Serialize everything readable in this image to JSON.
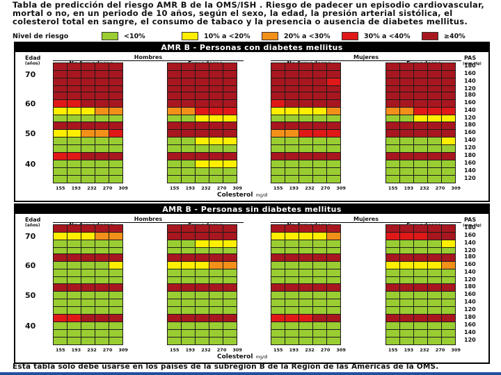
{
  "header": {
    "title_lead": "Tabla de predicción del riesgo AMR B de la OMS/ISH",
    "title_rest": ". Riesgo de padecer un episodio cardiovascular, mortal o no, en un periodo de 10 años, según el sexo, la edad, la presión arterial sistólica, el colesterol total en sangre, el consumo de tabaco y la presencia o ausencia de diabetes mellitus."
  },
  "legend": {
    "title": "Nivel de riesgo",
    "items": [
      {
        "label": "<10%",
        "color": "#9acd32"
      },
      {
        "label": "10% a <20%",
        "color": "#ffee00"
      },
      {
        "label": "20% a <30%",
        "color": "#f39019"
      },
      {
        "label": "30% a <40%",
        "color": "#e01818"
      },
      {
        "label": "≥40%",
        "color": "#a8171f"
      }
    ]
  },
  "labels": {
    "edad": "Edad",
    "anos": "(años)",
    "pas": "PAS",
    "pas_unit": "(mm Hg)",
    "hombres": "Hombres",
    "mujeres": "Mujeres",
    "no_fumadores": "No fumadores",
    "fumadores": "Fumadores",
    "colesterol": "Colesterol",
    "colesterol_unit": "mg/dl"
  },
  "ages": [
    "70",
    "60",
    "50",
    "40"
  ],
  "pas_values": [
    "180",
    "160",
    "140",
    "120"
  ],
  "cholesterol_ticks": [
    "155",
    "193",
    "232",
    "270",
    "309"
  ],
  "panels": [
    {
      "title": "AMR B - Personas con diabetes mellitus",
      "rows": [
        [
          "55555555555555555555",
          "55555555555555555555",
          "55555555555555555555",
          "55555555555555555555"
        ],
        [
          "55555455554455543334",
          "55555555555555555555",
          "55555555555555555555",
          "55555555555555555555"
        ],
        [
          "55555344552222111113",
          "55555555555555555555",
          "55554555552222111112",
          "55555455554455534444"
        ],
        [
          "55555222221111111112",
          "55555444433333322223",
          "55555222221111111111",
          "55555223331112211111"
        ],
        [
          "55555555555555555555",
          "55555555555555555555",
          "55555555555555555555",
          "55555555555555555555"
        ],
        [
          "44555222331111211112",
          "55555555555555555555",
          "45555333441222211111",
          "55555555555555555555"
        ],
        [
          "22233111110000000000",
          "33444222221111111111",
          "22223111110000000001",
          "33444122221111111111"
        ],
        [
          "11111000000000000000",
          "11222111110000000001",
          "11111000000000000000",
          "11222111110000000000"
        ],
        [
          "55555555555555555555",
          "55555555555555555555",
          "55555555555555555555",
          "55555555555555555555"
        ],
        [
          "22334111221111111111",
          "55555555555555555555",
          "33444111221111111111",
          "55555444453344422222"
        ],
        [
          "11111000000000000000",
          "11222111110000000000",
          "11111000000000000000",
          "11112111110000000000"
        ],
        [
          "00000000000000000000",
          "11111000000000000000",
          "00000000000000000000",
          "11111000000000000000"
        ],
        [
          "44555222331111111111",
          "55555555555555555555",
          "55555333431112211111",
          "55555555554445522233"
        ],
        [
          "11111000000000000000",
          "11222111110000000000",
          "11111000000000000000",
          "11111111110000000000"
        ],
        [
          "00000000000000000000",
          "00000000000000000000",
          "00000000000000000000",
          "00000000000000000000"
        ],
        [
          "00000000000000000000",
          "00000000000000000000",
          "00000000000000000000",
          "00000000000000000000"
        ]
      ]
    },
    {
      "title": "AMR B - Personas sin diabetes mellitus",
      "rows": [
        [
          "55555555555555555555",
          "55555555555555555555",
          "55555555555555555555",
          "55555555555555555555"
        ],
        [
          "22233334441222211112",
          "55555444553344522233",
          "22223222331222211111",
          "44455333442233411112"
        ],
        [
          "11111000000000000000",
          "11222111110000000000",
          "11111000000000000000",
          "11112111110000000000"
        ],
        [
          "00000000000000000000",
          "00000000000000000000",
          "00000000000000000000",
          "00000000000000000000"
        ],
        [
          "55555555555555555555",
          "55555555555555555555",
          "55555555555555555555",
          "55555555555555555555"
        ],
        [
          "11112111110000000000",
          "22233222331111211111",
          "11111111110000000000",
          "22223111221111111111"
        ],
        [
          "00000000000000000000",
          "00000000000000000000",
          "00000000000000000000",
          "00000000000000000000"
        ],
        [
          "00000000000000000000",
          "00000000000000000000",
          "00000000000000000000",
          "00000000000000000000"
        ],
        [
          "55555444551111100000",
          "55555555555555555555",
          "55555444451111100000",
          "55555555555555555555"
        ],
        [
          "00000000000000000000",
          "11111000000000000000",
          "00000000000000000000",
          "11111000000000000000"
        ],
        [
          "00000000000000000000",
          "00000000000000000000",
          "00000000000000000000",
          "00000000000000000000"
        ],
        [
          "00000000000000000000",
          "00000000000000000000",
          "00000000000000000000",
          "00000000000000000000"
        ],
        [
          "44555111110000000000",
          "55555555551111100000",
          "44455111110000000000",
          "55555444551111100000"
        ],
        [
          "00000000000000000000",
          "00000000000000000000",
          "00000000000000000000",
          "00000000000000000000"
        ],
        [
          "00000000000000000000",
          "00000000000000000000",
          "00000000000000000000",
          "00000000000000000000"
        ],
        [
          "00000000000000000000",
          "00000000000000000000",
          "00000000000000000000",
          "00000000000000000000"
        ]
      ]
    }
  ],
  "footer": "Esta tabla sólo debe usarse en los países de la subregión B de la Región de las Américas de la OMS."
}
